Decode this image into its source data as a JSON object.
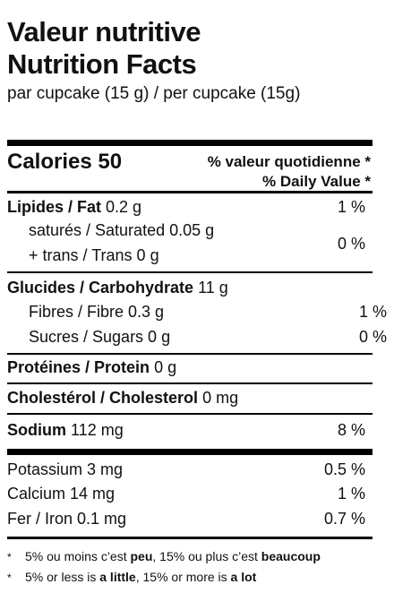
{
  "title_fr": "Valeur nutritive",
  "title_en": "Nutrition Facts",
  "serving": "par cupcake (15 g) / per cupcake (15g)",
  "calories": "Calories 50",
  "dv_header_fr": "% valeur quotidienne *",
  "dv_header_en": "% Daily Value *",
  "rows": {
    "fat": {
      "label": "Lipides / Fat",
      "amount": "0.2 g",
      "pct": "1 %"
    },
    "saturated": {
      "label": "saturés / Saturated 0.05 g"
    },
    "trans": {
      "label": "+ trans / Trans 0 g",
      "pct": "0 %"
    },
    "carb": {
      "label": "Glucides / Carbohydrate",
      "amount": "11 g"
    },
    "fibre": {
      "label": "Fibres / Fibre 0.3 g",
      "pct": "1 %"
    },
    "sugars": {
      "label": "Sucres / Sugars 0 g",
      "pct": "0 %"
    },
    "protein": {
      "label": "Protéines / Protein",
      "amount": "0 g"
    },
    "cholesterol": {
      "label": "Cholestérol / Cholesterol",
      "amount": "0 mg"
    },
    "sodium": {
      "label": "Sodium",
      "amount": "112 mg",
      "pct": "8 %"
    },
    "potassium": {
      "label": "Potassium 3 mg",
      "pct": "0.5 %"
    },
    "calcium": {
      "label": "Calcium 14 mg",
      "pct": "1 %"
    },
    "iron": {
      "label": "Fer / Iron 0.1 mg",
      "pct": "0.7 %"
    }
  },
  "footnote_fr": {
    "a": "5% ou moins c’est ",
    "b": "peu",
    "c": ", 15% ou plus c’est ",
    "d": "beaucoup"
  },
  "footnote_en": {
    "a": "5% or less is ",
    "b": "a little",
    "c": ", 15% or more is ",
    "d": "a lot"
  },
  "star": "*"
}
